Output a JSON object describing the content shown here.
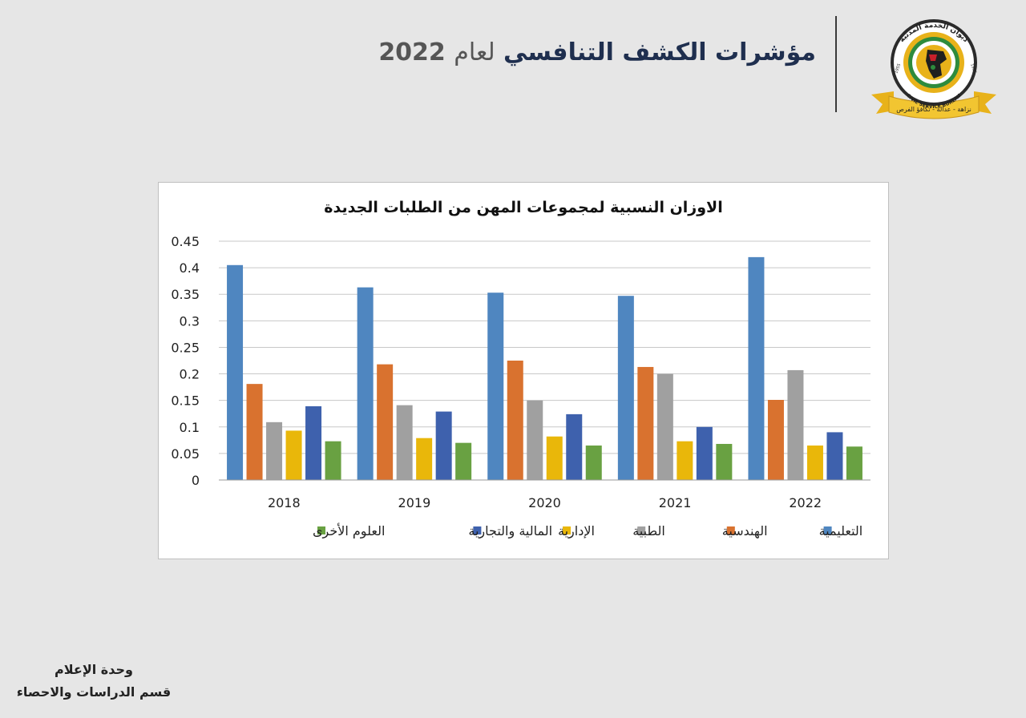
{
  "header": {
    "title_main": "مؤشرات الكشف التنافسي",
    "title_mid": "لعام",
    "title_year": "2022"
  },
  "logo": {
    "arc_text": "ديوان الخدمة المدنية",
    "english_text": "CIVIL SERVICE BUREAU",
    "est_left": "1955",
    "est_right": "1955",
    "banner_text": "نزاهة - عدالة - تكافؤ الفرص",
    "colors": {
      "ring": "#2b2b2b",
      "gold": "#e8b21a",
      "green": "#2e8b3d",
      "red": "#c8202a"
    }
  },
  "chart_data": {
    "type": "bar",
    "title": "الاوزان النسبية لمجموعات المهن من الطلبات الجديدة",
    "categories": [
      "2018",
      "2019",
      "2020",
      "2021",
      "2022"
    ],
    "ylim": [
      0,
      0.45
    ],
    "yticks": [
      "0",
      "0.05",
      "0.1",
      "0.15",
      "0.2",
      "0.25",
      "0.3",
      "0.35",
      "0.4",
      "0.45"
    ],
    "grid": true,
    "legend_position": "bottom",
    "series": [
      {
        "name": "التعليمية",
        "color": "#4f86c0",
        "values": [
          0.405,
          0.363,
          0.353,
          0.347,
          0.42
        ]
      },
      {
        "name": "الهندسية",
        "color": "#d9722f",
        "values": [
          0.181,
          0.218,
          0.225,
          0.213,
          0.151
        ]
      },
      {
        "name": "الطبية",
        "color": "#a0a0a0",
        "values": [
          0.109,
          0.141,
          0.15,
          0.2,
          0.207
        ]
      },
      {
        "name": "الإدارية",
        "color": "#e9b70a",
        "values": [
          0.093,
          0.079,
          0.082,
          0.073,
          0.065
        ]
      },
      {
        "name": "المالية والتجارية",
        "color": "#3e61ad",
        "values": [
          0.139,
          0.129,
          0.124,
          0.1,
          0.09
        ]
      },
      {
        "name": "العلوم الأخرى",
        "color": "#69a142",
        "values": [
          0.073,
          0.07,
          0.065,
          0.068,
          0.063
        ]
      }
    ]
  },
  "footer": {
    "line1": "وحدة الإعلام",
    "line2": "قسم الدراسات والاحصاء"
  }
}
